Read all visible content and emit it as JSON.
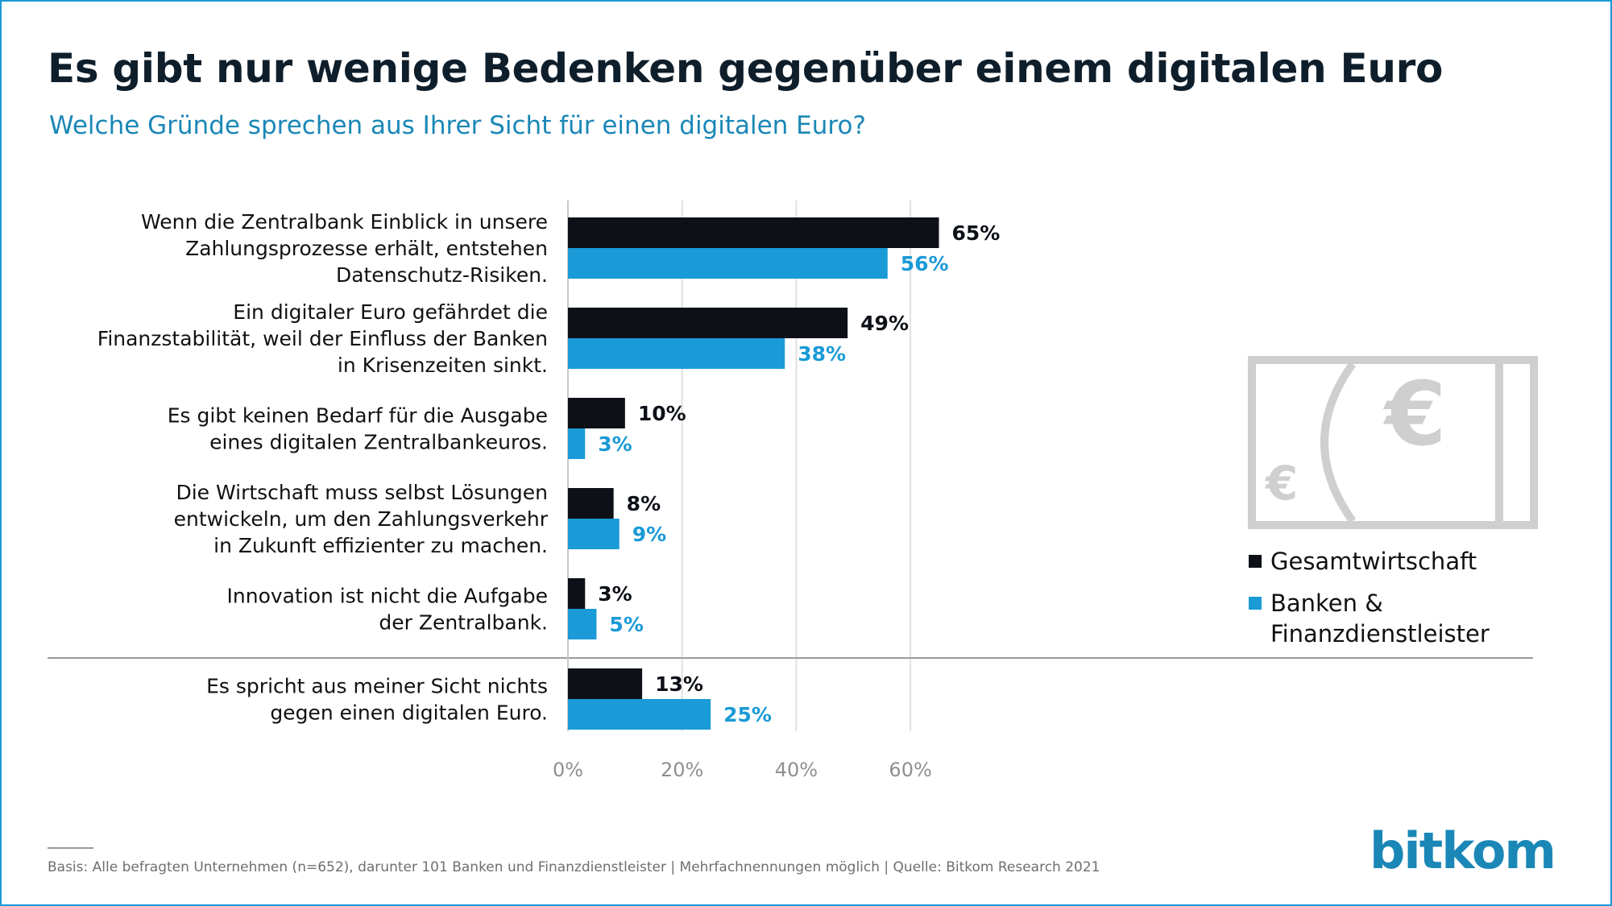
{
  "header": {
    "title": "Es gibt nur wenige Bedenken gegenüber einem digitalen Euro",
    "subtitle": "Welche Gründe sprechen aus Ihrer Sicht für einen digitalen Euro?"
  },
  "chart_data": {
    "type": "bar",
    "orientation": "horizontal",
    "categories": [
      [
        "Wenn die Zentralbank Einblick in unsere",
        "Zahlungsprozesse erhält, entstehen",
        "Datenschutz-Risiken."
      ],
      [
        "Ein digitaler Euro gefährdet die",
        "Finanzstabilität, weil der Einfluss der Banken",
        "in Krisenzeiten sinkt."
      ],
      [
        "Es gibt keinen Bedarf für die Ausgabe",
        "eines digitalen Zentralbankeuros."
      ],
      [
        "Die Wirtschaft muss selbst Lösungen",
        "entwickeln, um den Zahlungsverkehr",
        "in Zukunft effizienter zu machen."
      ],
      [
        "Innovation ist nicht die Aufgabe",
        "der Zentralbank."
      ],
      [
        "Es spricht aus meiner Sicht nichts",
        "gegen einen digitalen Euro."
      ]
    ],
    "series": [
      {
        "name": "Gesamtwirtschaft",
        "color": "#0d1117",
        "values": [
          65,
          49,
          10,
          8,
          3,
          13
        ],
        "labels": [
          "65%",
          "49%",
          "10%",
          "8%",
          "3%",
          "13%"
        ]
      },
      {
        "name": "Banken & Finanzdienstleister",
        "color": "#1a9ad6",
        "values": [
          56,
          38,
          3,
          9,
          5,
          25
        ],
        "labels": [
          "56%",
          "38%",
          "3%",
          "9%",
          "5%",
          "25%"
        ]
      }
    ],
    "xlim": [
      0,
      70
    ],
    "xticks": [
      0,
      20,
      40,
      60
    ],
    "xtick_labels": [
      "0%",
      "20%",
      "40%",
      "60%"
    ],
    "grid": true,
    "separator_before_category": 5,
    "legend": "right"
  },
  "legend": {
    "items": [
      {
        "label": "Gesamtwirtschaft",
        "color": "#0d1117"
      },
      {
        "label": "Banken & Finanzdienstleister",
        "color": "#1a9ad6"
      }
    ]
  },
  "decoration": {
    "icon": "euro-banknote-icon",
    "icon_color": "#cfcfcf",
    "symbol": "€"
  },
  "footer": {
    "note": "Basis: Alle befragten Unternehmen (n=652), darunter 101 Banken und Finanzdienstleister | Mehrfachnennungen möglich | Quelle: Bitkom Research 2021",
    "logo": "bitkom"
  }
}
